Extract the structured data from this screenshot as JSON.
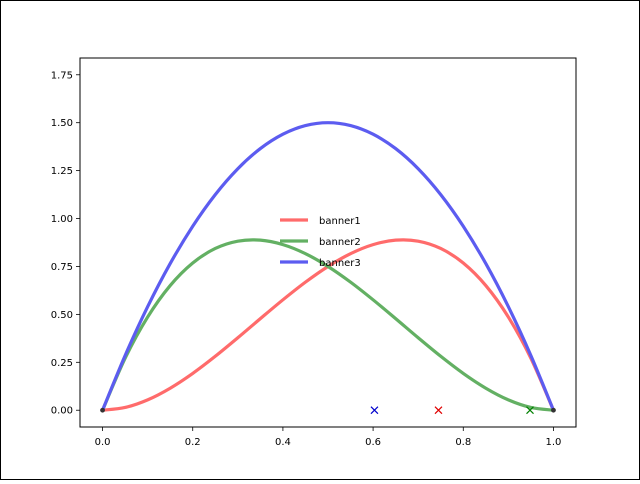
{
  "chart_data": {
    "type": "line",
    "title": "",
    "xlabel": "",
    "ylabel": "",
    "xlim": [
      -0.05,
      1.05
    ],
    "ylim": [
      -0.0875,
      1.8375
    ],
    "xticks": [
      0.0,
      0.2,
      0.4,
      0.6,
      0.8,
      1.0
    ],
    "xtick_labels": [
      "0.0",
      "0.2",
      "0.4",
      "0.6",
      "0.8",
      "1.0"
    ],
    "yticks": [
      0.0,
      0.25,
      0.5,
      0.75,
      1.0,
      1.25,
      1.5,
      1.75
    ],
    "ytick_labels": [
      "0.00",
      "0.25",
      "0.50",
      "0.75",
      "1.00",
      "1.25",
      "1.50",
      "1.75"
    ],
    "grid": false,
    "legend_position": "center",
    "series": [
      {
        "name": "banner1",
        "color": "#ff6b6b",
        "x": [
          0.0,
          0.05,
          0.1,
          0.15,
          0.2,
          0.25,
          0.3,
          0.35,
          0.4,
          0.45,
          0.5,
          0.55,
          0.6,
          0.65,
          0.7,
          0.75,
          0.8,
          0.85,
          0.9,
          0.95,
          1.0
        ],
        "y": [
          0.0,
          0.0143,
          0.054,
          0.1148,
          0.192,
          0.2813,
          0.378,
          0.4778,
          0.576,
          0.6683,
          0.75,
          0.8168,
          0.864,
          0.8873,
          0.882,
          0.8438,
          0.768,
          0.6503,
          0.486,
          0.2708,
          0.0
        ],
        "marker_x": 0.745,
        "marker_y": 0.0
      },
      {
        "name": "banner2",
        "color": "#63b063",
        "x": [
          0.0,
          0.05,
          0.1,
          0.15,
          0.2,
          0.25,
          0.3,
          0.35,
          0.4,
          0.45,
          0.5,
          0.55,
          0.6,
          0.65,
          0.7,
          0.75,
          0.8,
          0.85,
          0.9,
          0.95,
          1.0
        ],
        "y": [
          0.0,
          0.2708,
          0.486,
          0.6503,
          0.768,
          0.8438,
          0.882,
          0.8873,
          0.864,
          0.8168,
          0.75,
          0.6683,
          0.576,
          0.4778,
          0.378,
          0.2813,
          0.192,
          0.1148,
          0.054,
          0.0143,
          0.0
        ],
        "marker_x": 0.948,
        "marker_y": 0.0
      },
      {
        "name": "banner3",
        "color": "#5c5cf0",
        "x": [
          0.0,
          0.05,
          0.1,
          0.15,
          0.2,
          0.25,
          0.3,
          0.35,
          0.4,
          0.45,
          0.5,
          0.55,
          0.6,
          0.65,
          0.7,
          0.75,
          0.8,
          0.85,
          0.9,
          0.95,
          1.0
        ],
        "y": [
          0.0,
          0.285,
          0.54,
          0.765,
          0.96,
          1.125,
          1.26,
          1.365,
          1.44,
          1.485,
          1.5,
          1.485,
          1.44,
          1.365,
          1.26,
          1.125,
          0.96,
          0.765,
          0.54,
          0.285,
          0.0
        ],
        "marker_x": 0.603,
        "marker_y": 0.0
      }
    ]
  }
}
